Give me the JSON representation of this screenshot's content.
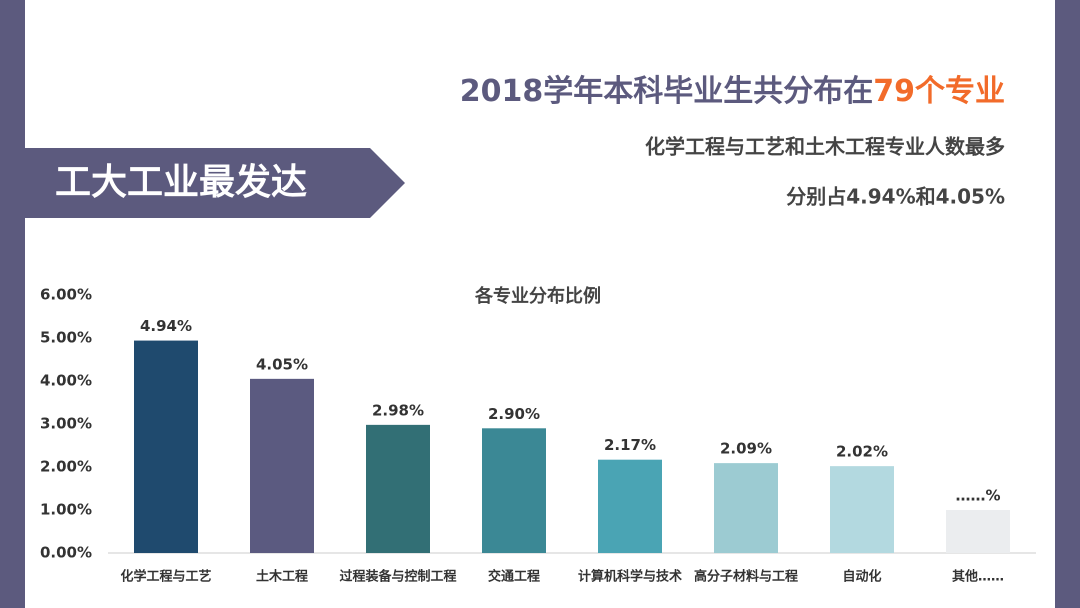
{
  "banner": "工大工业最发达",
  "header": {
    "title": "2018学年本科毕业生共分布在",
    "title_highlight": "79个专业",
    "lines": [
      "化学工程与工艺和土木工程专业人数最多",
      "分别占4.94%和4.05%"
    ]
  },
  "chart_data": {
    "type": "bar",
    "title": "各专业分布比例",
    "categories": [
      "化学工程与工艺",
      "土木工程",
      "过程装备与控制工程",
      "交通工程",
      "计算机科学与技术",
      "高分子材料与工程",
      "自动化",
      "其他……"
    ],
    "values": [
      4.94,
      4.05,
      2.98,
      2.9,
      2.17,
      2.09,
      2.02,
      1.0
    ],
    "value_labels": [
      "4.94%",
      "4.05%",
      "2.98%",
      "2.90%",
      "2.17%",
      "2.09%",
      "2.02%",
      "……%"
    ],
    "colors": [
      "#1f4a6e",
      "#5b5a80",
      "#326f75",
      "#3b8895",
      "#4aa4b4",
      "#9ccbd2",
      "#b3d9e0",
      "#ebedef"
    ],
    "ylim": [
      0,
      6
    ],
    "yticks": [
      {
        "value": 0,
        "label": "0.00%"
      },
      {
        "value": 1,
        "label": "1.00%"
      },
      {
        "value": 2,
        "label": "2.00%"
      },
      {
        "value": 3,
        "label": "3.00%"
      },
      {
        "value": 4,
        "label": "4.00%"
      },
      {
        "value": 5,
        "label": "5.00%"
      },
      {
        "value": 6,
        "label": "6.00%"
      }
    ],
    "grid": false
  }
}
